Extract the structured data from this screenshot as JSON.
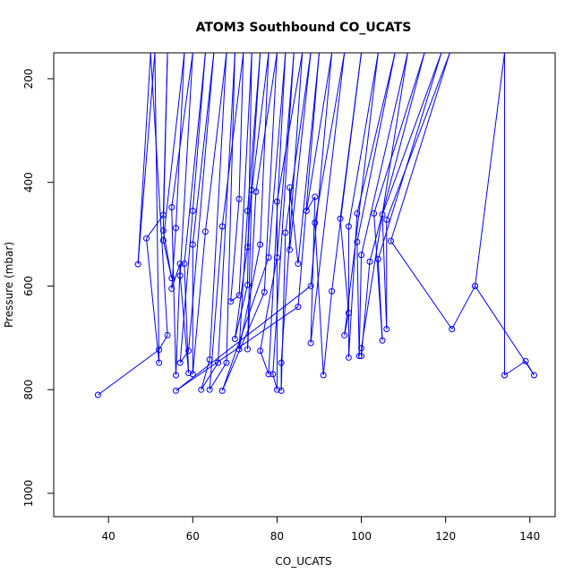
{
  "chart_data": {
    "type": "line",
    "title": "ATOM3 Southbound CO_UCATS",
    "xlabel": "CO_UCATS",
    "ylabel": "Pressure (mbar)",
    "xlim": [
      27,
      146
    ],
    "ylim": [
      1045,
      150
    ],
    "y_reversed": true,
    "grid": false,
    "x_ticks": [
      40,
      60,
      80,
      100,
      120,
      140
    ],
    "y_ticks": [
      200,
      400,
      600,
      800,
      1000
    ],
    "series_color": "#0000ff",
    "marker": "open-circle",
    "series": [
      {
        "points": [
          [
            37.5,
            810
          ],
          [
            52,
            723
          ],
          [
            54,
            695
          ],
          [
            50,
            150
          ],
          [
            47,
            558
          ],
          [
            51,
            150
          ],
          [
            52,
            748
          ],
          [
            49,
            508
          ],
          [
            53,
            463
          ],
          [
            54,
            150
          ],
          [
            53,
            493
          ],
          [
            55,
            585
          ],
          [
            53,
            512
          ],
          [
            58,
            150
          ],
          [
            56,
            488
          ],
          [
            55,
            605
          ],
          [
            57,
            557
          ],
          [
            56,
            772
          ],
          [
            55,
            448
          ],
          [
            60,
            150
          ],
          [
            57,
            580
          ],
          [
            59,
            768
          ],
          [
            58,
            557
          ],
          [
            63,
            150
          ],
          [
            60,
            455
          ],
          [
            57,
            748
          ],
          [
            59,
            725
          ],
          [
            65,
            150
          ],
          [
            60,
            520
          ],
          [
            60,
            770
          ],
          [
            63,
            495
          ],
          [
            68,
            150
          ],
          [
            64,
            742
          ],
          [
            62,
            800
          ],
          [
            66,
            748
          ],
          [
            70,
            150
          ],
          [
            68,
            748
          ],
          [
            64,
            800
          ],
          [
            67,
            485
          ],
          [
            72,
            150
          ],
          [
            71,
            432
          ],
          [
            69,
            630
          ],
          [
            71,
            618
          ],
          [
            74,
            150
          ],
          [
            73,
            598
          ],
          [
            70,
            702
          ],
          [
            73,
            525
          ],
          [
            76,
            150
          ],
          [
            73,
            455
          ],
          [
            71,
            722
          ],
          [
            76,
            520
          ],
          [
            78,
            150
          ],
          [
            74,
            415
          ],
          [
            73,
            722
          ],
          [
            75,
            418
          ],
          [
            80,
            150
          ],
          [
            77,
            612
          ],
          [
            67,
            802
          ],
          [
            78,
            545
          ],
          [
            82,
            150
          ],
          [
            78,
            770
          ],
          [
            76,
            725
          ],
          [
            80,
            545
          ],
          [
            84,
            150
          ],
          [
            79,
            770
          ],
          [
            80,
            800
          ],
          [
            80,
            437
          ],
          [
            86,
            150
          ],
          [
            81,
            748
          ],
          [
            81,
            802
          ],
          [
            82,
            497
          ],
          [
            88,
            150
          ],
          [
            83,
            530
          ],
          [
            83,
            410
          ],
          [
            85,
            557
          ],
          [
            90,
            150
          ],
          [
            85,
            640
          ],
          [
            56,
            802
          ],
          [
            88,
            600
          ],
          [
            93,
            150
          ],
          [
            87,
            455
          ],
          [
            89,
            428
          ],
          [
            88,
            710
          ],
          [
            96,
            150
          ],
          [
            89,
            478
          ],
          [
            91,
            772
          ],
          [
            93,
            610
          ],
          [
            100,
            150
          ],
          [
            95,
            470
          ],
          [
            97,
            652
          ],
          [
            96,
            695
          ],
          [
            104,
            150
          ],
          [
            97,
            485
          ],
          [
            97,
            738
          ],
          [
            99,
            460
          ],
          [
            108,
            150
          ],
          [
            99,
            515
          ],
          [
            99.5,
            735
          ],
          [
            100,
            540
          ],
          [
            111,
            150
          ],
          [
            100,
            720
          ],
          [
            100,
            735
          ],
          [
            102,
            553
          ],
          [
            115,
            150
          ],
          [
            103,
            460
          ],
          [
            105,
            705
          ],
          [
            104,
            548
          ],
          [
            119,
            150
          ],
          [
            105,
            462
          ],
          [
            106,
            683
          ],
          [
            106,
            472
          ],
          [
            121,
            150
          ],
          [
            107,
            513
          ],
          [
            121.5,
            683
          ],
          [
            127,
            600
          ],
          [
            134,
            150
          ],
          [
            134,
            772
          ],
          [
            139,
            745
          ],
          [
            141,
            772
          ],
          [
            127,
            600
          ]
        ]
      }
    ]
  }
}
